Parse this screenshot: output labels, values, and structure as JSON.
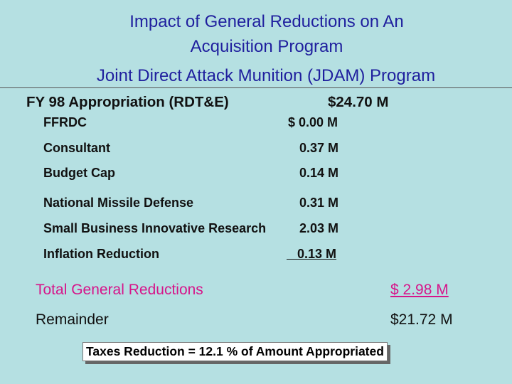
{
  "title": {
    "line1": "Impact of General Reductions on An",
    "line2": "Acquisition Program",
    "subtitle": "Joint Direct Attack Munition (JDAM) Program"
  },
  "appropriation": {
    "label": "FY 98 Appropriation (RDT&E)",
    "amount": "$24.70 M"
  },
  "reductions": [
    {
      "label": "FFRDC",
      "amount": "$ 0.00 M"
    },
    {
      "label": "Consultant",
      "amount": "0.37 M"
    },
    {
      "label": "Budget Cap",
      "amount": "0.14 M"
    },
    {
      "label": "National Missile Defense",
      "amount": "0.31 M"
    },
    {
      "label": "Small Business Innovative Research",
      "amount": "2.03 M"
    },
    {
      "label": "Inflation Reduction",
      "amount": "0.13 M"
    }
  ],
  "total": {
    "label": "Total General Reductions",
    "amount": "$ 2.98 M"
  },
  "remainder": {
    "label": "Remainder",
    "amount": "$21.72 M"
  },
  "note": "Taxes Reduction = 12.1 % of Amount Appropriated",
  "colors": {
    "background": "#b5e0e2",
    "title": "#1f1f9e",
    "total": "#d6158a"
  }
}
